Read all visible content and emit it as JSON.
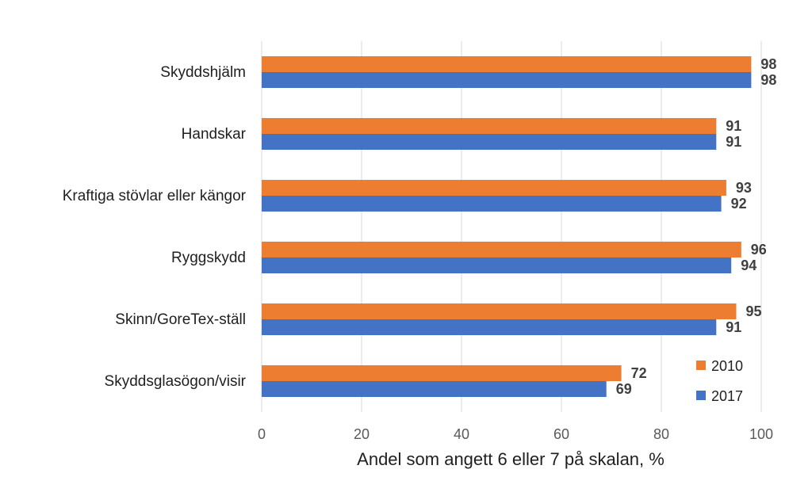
{
  "chart_data": {
    "type": "bar",
    "orientation": "horizontal",
    "categories": [
      "Skyddshjälm",
      "Handskar",
      "Kraftiga stövlar eller kängor",
      "Ryggskydd",
      "Skinn/GoreTex-ställ",
      "Skyddsglasögon/visir"
    ],
    "series": [
      {
        "name": "2010",
        "values": [
          98,
          91,
          93,
          96,
          95,
          72
        ],
        "color": "#ED7D31"
      },
      {
        "name": "2017",
        "values": [
          98,
          91,
          92,
          94,
          91,
          69
        ],
        "color": "#4472C4"
      }
    ],
    "xlabel": "Andel som angett 6 eller 7 på skalan, %",
    "xlim": [
      0,
      100
    ],
    "xticks": [
      "0",
      "20",
      "40",
      "60",
      "80",
      "100"
    ],
    "grid": true,
    "legend_position": "bottom-right",
    "data_labels": true
  }
}
